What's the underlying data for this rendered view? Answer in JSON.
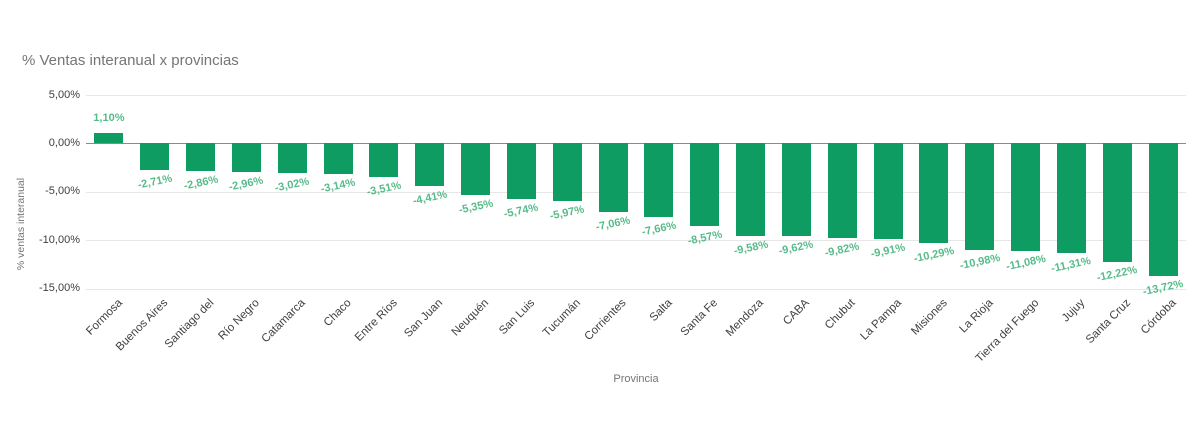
{
  "chart_data": {
    "type": "bar",
    "title": "% Ventas interanual x provincias",
    "xlabel": "Provincia",
    "ylabel": "% ventas interanual",
    "categories": [
      "Formosa",
      "Buenos Aires",
      "Santiago del",
      "Río Negro",
      "Catamarca",
      "Chaco",
      "Entre Ríos",
      "San Juan",
      "Neuquén",
      "San Luis",
      "Tucumán",
      "Corrientes",
      "Salta",
      "Santa Fe",
      "Mendoza",
      "CABA",
      "Chubut",
      "La Pampa",
      "Misiones",
      "La Rioja",
      "Tierra del Fuego",
      "Jujuy",
      "Santa Cruz",
      "Córdoba"
    ],
    "values": [
      1.1,
      -2.71,
      -2.86,
      -2.96,
      -3.02,
      -3.14,
      -3.51,
      -4.41,
      -5.35,
      -5.74,
      -5.97,
      -7.06,
      -7.66,
      -8.57,
      -9.58,
      -9.62,
      -9.82,
      -9.91,
      -10.29,
      -10.98,
      -11.08,
      -11.31,
      -12.22,
      -13.72
    ],
    "value_labels": [
      "1,10%",
      "-2,71%",
      "-2,86%",
      "-2,96%",
      "-3,02%",
      "-3,14%",
      "-3,51%",
      "-4,41%",
      "-5,35%",
      "-5,74%",
      "-5,97%",
      "-7,06%",
      "-7,66%",
      "-8,57%",
      "-9,58%",
      "-9,62%",
      "-9,82%",
      "-9,91%",
      "-10,29%",
      "-10,98%",
      "-11,08%",
      "-11,31%",
      "-12,22%",
      "-13,72%"
    ],
    "ylim": [
      -15,
      5
    ],
    "y_ticks": [
      {
        "value": 5,
        "label": "5,00%"
      },
      {
        "value": 0,
        "label": "0,00%"
      },
      {
        "value": -5,
        "label": "-5,00%"
      },
      {
        "value": -10,
        "label": "-10,00%"
      },
      {
        "value": -15,
        "label": "-15,00%"
      }
    ],
    "grid": true,
    "legend_position": "none",
    "colors": {
      "bar": "#0e9c62",
      "data_label": "#58bb8a",
      "title_text": "#757575",
      "axis_text": "#3f3f3f",
      "gridline": "#e6e6e6",
      "zero_line": "#8a8a8a",
      "background": "#ffffff"
    }
  }
}
